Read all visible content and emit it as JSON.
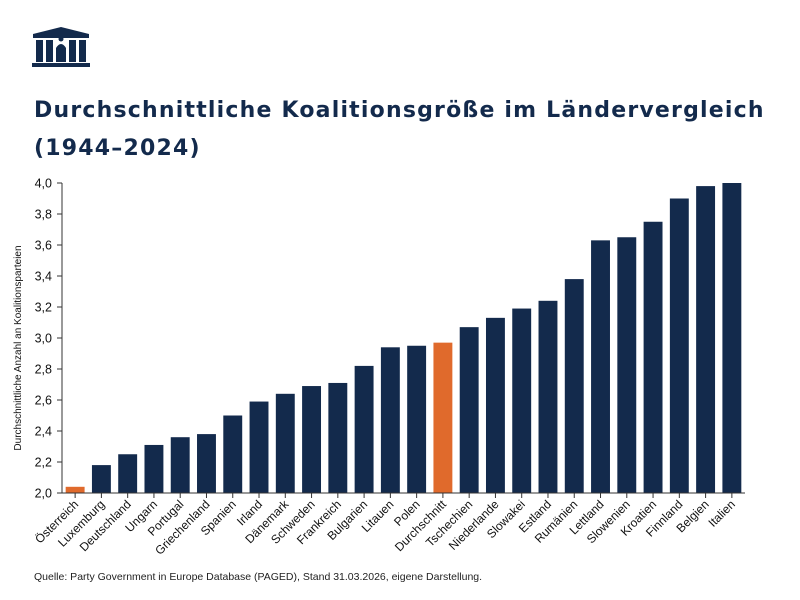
{
  "header": {
    "title": "Durchschnittliche Koalitionsgröße im Ländervergleich (1944–2024)"
  },
  "chart_data": {
    "type": "bar",
    "title": "Durchschnittliche Koalitionsgröße im Ländervergleich (1944–2024)",
    "xlabel": "",
    "ylabel": "Durchschnittliche Anzahl an Koalitionsparteien",
    "ylim": [
      2.0,
      4.0
    ],
    "yticks": [
      "2,0",
      "2,2",
      "2,4",
      "2,6",
      "2,8",
      "3,0",
      "3,2",
      "3,4",
      "3,6",
      "3,8",
      "4,0"
    ],
    "categories": [
      "Österreich",
      "Luxemburg",
      "Deutschland",
      "Ungarn",
      "Portugal",
      "Griechenland",
      "Spanien",
      "Irland",
      "Dänemark",
      "Schweden",
      "Frankreich",
      "Bulgarien",
      "Litauen",
      "Polen",
      "Durchschnitt",
      "Tschechien",
      "Niederlande",
      "Slowakei",
      "Estland",
      "Rumänien",
      "Lettland",
      "Slowenien",
      "Kroatien",
      "Finnland",
      "Belgien",
      "Italien"
    ],
    "values": [
      2.04,
      2.18,
      2.25,
      2.31,
      2.36,
      2.38,
      2.5,
      2.59,
      2.64,
      2.69,
      2.71,
      2.82,
      2.94,
      2.95,
      2.97,
      3.07,
      3.13,
      3.19,
      3.24,
      3.38,
      3.63,
      3.65,
      3.75,
      3.9,
      3.98,
      4.0
    ],
    "highlight": [
      "Österreich",
      "Durchschnitt"
    ],
    "colors": {
      "bar": "#132a4c",
      "highlight": "#e06a2c",
      "axis": "#333333"
    },
    "grid": false,
    "legend": "none"
  },
  "footer": {
    "source": "Quelle: Party Government in Europe Database (PAGED), Stand 31.03.2026, eigene Darstellung."
  },
  "logo": {
    "icon": "parliament-building-icon"
  }
}
